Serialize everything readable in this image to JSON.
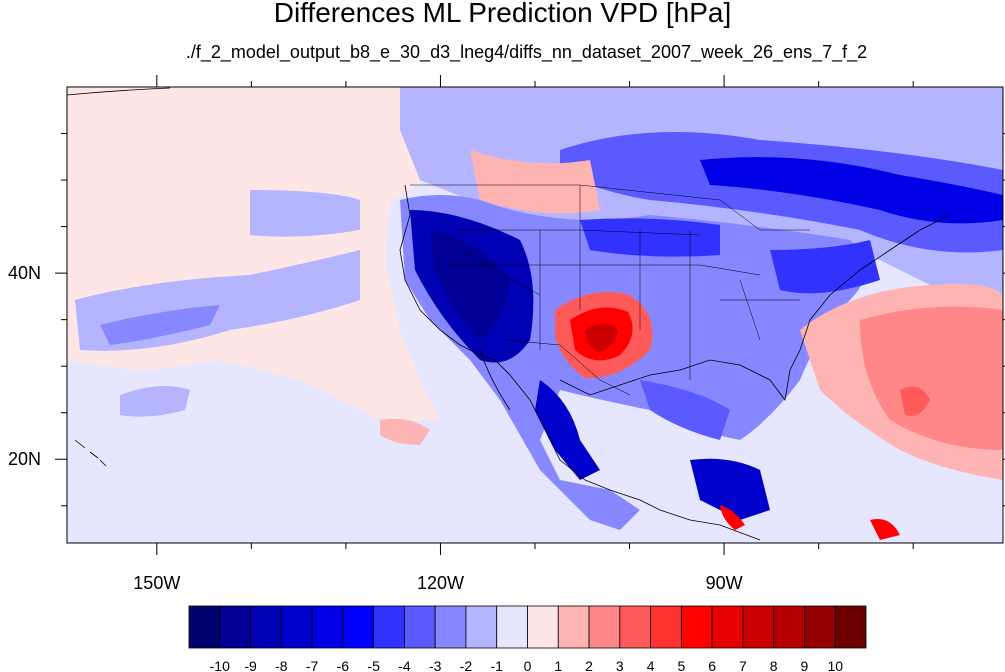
{
  "title": "Differences ML Prediction VPD [hPa]",
  "subtitle": "./f_2_model_output_b8_e_30_d3_lneg4/diffs_nn_dataset_2007_week_26_ens_7_f_2",
  "map": {
    "lon_range": [
      -159.5,
      -60.5
    ],
    "lat_range": [
      11,
      60
    ],
    "lon_ticks": [
      {
        "value": -150,
        "label": "150W"
      },
      {
        "value": -120,
        "label": "120W"
      },
      {
        "value": -90,
        "label": "90W"
      }
    ],
    "lat_ticks": [
      {
        "value": 40,
        "label": "40N"
      },
      {
        "value": 20,
        "label": "20N"
      }
    ],
    "minor_lon_ticks": [
      -140,
      -130,
      -110,
      -100,
      -80,
      -70
    ],
    "minor_lat_ticks": [
      15,
      25,
      30,
      35,
      45,
      50,
      55
    ]
  },
  "colorbar": {
    "labels": [
      "-10",
      "-9",
      "-8",
      "-7",
      "-6",
      "-5",
      "-4",
      "-3",
      "-2",
      "-1",
      "0",
      "1",
      "2",
      "3",
      "4",
      "5",
      "6",
      "7",
      "8",
      "9",
      "10"
    ],
    "colors": [
      "#00006e",
      "#000096",
      "#0000b4",
      "#0000cd",
      "#0000e6",
      "#0000ff",
      "#3232ff",
      "#5a5aff",
      "#8787ff",
      "#b4b4ff",
      "#e6e6ff",
      "#ffe6e6",
      "#ffb4b4",
      "#ff8787",
      "#ff5a5a",
      "#ff3232",
      "#ff0000",
      "#e60000",
      "#cd0000",
      "#b40000",
      "#960000",
      "#6e0000"
    ]
  }
}
